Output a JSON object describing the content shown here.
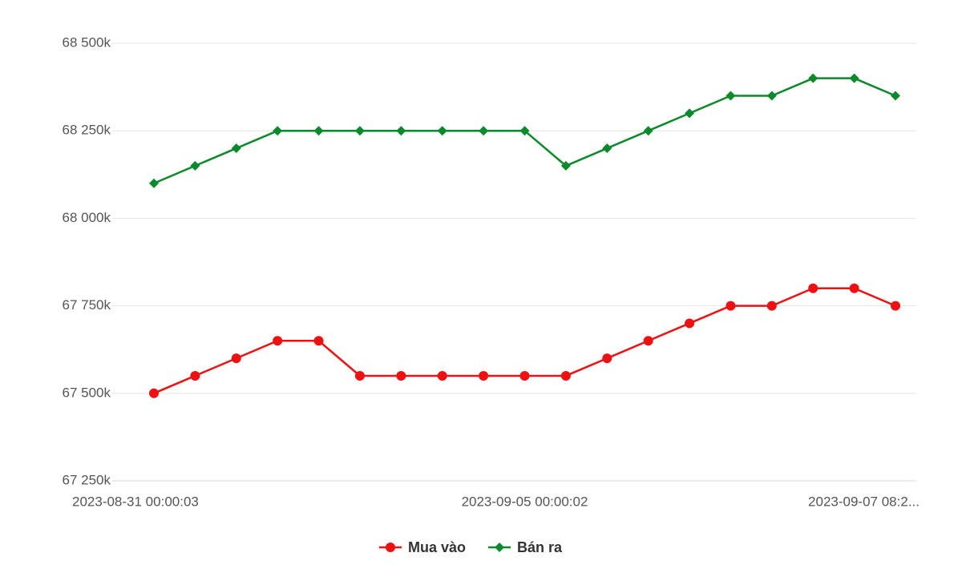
{
  "chart_data": {
    "type": "line",
    "categories": [
      "2023-08-31 00:00:03",
      null,
      null,
      null,
      null,
      null,
      null,
      null,
      null,
      "2023-09-05 00:00:02",
      null,
      null,
      null,
      null,
      null,
      null,
      null,
      null,
      "2023-09-07 08:2..."
    ],
    "series": [
      {
        "name": "Mua vào",
        "color": "#ee1111",
        "marker": "circle",
        "values": [
          67500000,
          67550000,
          67600000,
          67650000,
          67650000,
          67550000,
          67550000,
          67550000,
          67550000,
          67550000,
          67550000,
          67600000,
          67650000,
          67700000,
          67750000,
          67750000,
          67800000,
          67800000,
          67750000
        ]
      },
      {
        "name": "Bán ra",
        "color": "#0a8a2a",
        "marker": "diamond",
        "values": [
          68100000,
          68150000,
          68200000,
          68250000,
          68250000,
          68250000,
          68250000,
          68250000,
          68250000,
          68250000,
          68150000,
          68200000,
          68250000,
          68300000,
          68350000,
          68350000,
          68400000,
          68400000,
          68350000
        ]
      }
    ],
    "ylim": [
      67250000,
      68500000
    ],
    "yticks": [
      {
        "value": 67250000,
        "label": "67 250k"
      },
      {
        "value": 67500000,
        "label": "67 500k"
      },
      {
        "value": 67750000,
        "label": "67 750k"
      },
      {
        "value": 68000000,
        "label": "68 000k"
      },
      {
        "value": 68250000,
        "label": "68 250k"
      },
      {
        "value": 68500000,
        "label": "68 500k"
      }
    ],
    "grid": true,
    "legend": "bottom"
  }
}
